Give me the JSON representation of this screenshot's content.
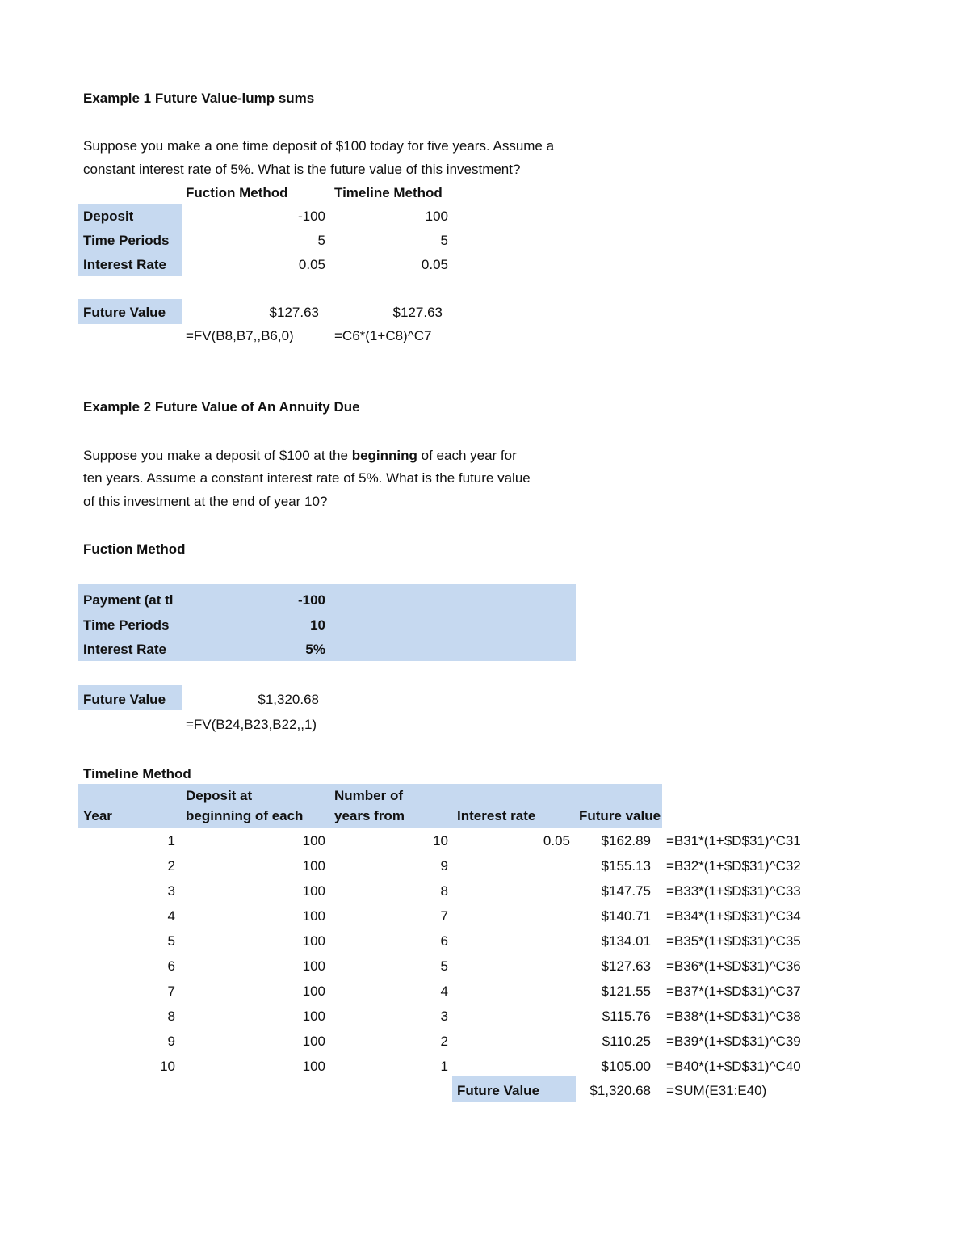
{
  "example1": {
    "title": "Example 1 Future Value-lump sums",
    "text": [
      "Suppose you make a one time deposit of $100 today for five years. Assume a",
      "constant interest rate of 5%. What is the future value of this investment?"
    ],
    "col_headers": [
      "Fuction Method",
      "Timeline Method"
    ],
    "rows": [
      {
        "label": "Deposit",
        "function": "-100",
        "timeline": "100"
      },
      {
        "label": "Time Periods",
        "function": "5",
        "timeline": "5"
      },
      {
        "label": "Interest Rate",
        "function": "0.05",
        "timeline": "0.05"
      }
    ],
    "fv_label": "Future Value",
    "fv_function": "$127.63",
    "fv_timeline": "$127.63",
    "formula_function": "=FV(B8,B7,,B6,0)",
    "formula_timeline": "=C6*(1+C8)^C7"
  },
  "example2": {
    "title": "Example 2 Future Value of An Annuity Due",
    "text_parts": [
      "Suppose you make a deposit of $100 at the ",
      "beginning",
      " of each year for"
    ],
    "text": [
      "ten years. Assume a constant interest rate of 5%. What is the future value",
      "of this investment at the end of year 10?"
    ],
    "function_heading": "Fuction Method",
    "rows": [
      {
        "label": "Payment (at tl",
        "value": "-100"
      },
      {
        "label": "Time Periods",
        "value": "10"
      },
      {
        "label": "Interest Rate",
        "value": "5%"
      }
    ],
    "fv_label": "Future Value",
    "fv_value": "$1,320.68",
    "fv_formula": "=FV(B24,B23,B22,,1)",
    "timeline_heading": "Timeline Method",
    "headers": {
      "year": "Year",
      "deposit": [
        "Deposit at",
        "beginning of each"
      ],
      "years_from": [
        "Number of",
        "years from"
      ],
      "rate": "Interest rate",
      "fv": "Future value"
    },
    "timeline_rows": [
      {
        "year": "1",
        "deposit": "100",
        "n": "10",
        "rate": "0.05",
        "fv": "$162.89",
        "formula": "=B31*(1+$D$31)^C31"
      },
      {
        "year": "2",
        "deposit": "100",
        "n": "9",
        "rate": "",
        "fv": "$155.13",
        "formula": "=B32*(1+$D$31)^C32"
      },
      {
        "year": "3",
        "deposit": "100",
        "n": "8",
        "rate": "",
        "fv": "$147.75",
        "formula": "=B33*(1+$D$31)^C33"
      },
      {
        "year": "4",
        "deposit": "100",
        "n": "7",
        "rate": "",
        "fv": "$140.71",
        "formula": "=B34*(1+$D$31)^C34"
      },
      {
        "year": "5",
        "deposit": "100",
        "n": "6",
        "rate": "",
        "fv": "$134.01",
        "formula": "=B35*(1+$D$31)^C35"
      },
      {
        "year": "6",
        "deposit": "100",
        "n": "5",
        "rate": "",
        "fv": "$127.63",
        "formula": "=B36*(1+$D$31)^C36"
      },
      {
        "year": "7",
        "deposit": "100",
        "n": "4",
        "rate": "",
        "fv": "$121.55",
        "formula": "=B37*(1+$D$31)^C37"
      },
      {
        "year": "8",
        "deposit": "100",
        "n": "3",
        "rate": "",
        "fv": "$115.76",
        "formula": "=B38*(1+$D$31)^C38"
      },
      {
        "year": "9",
        "deposit": "100",
        "n": "2",
        "rate": "",
        "fv": "$110.25",
        "formula": "=B39*(1+$D$31)^C39"
      },
      {
        "year": "10",
        "deposit": "100",
        "n": "1",
        "rate": "",
        "fv": "$105.00",
        "formula": "=B40*(1+$D$31)^C40"
      }
    ],
    "total_label": "Future Value",
    "total_value": "$1,320.68",
    "total_formula": "=SUM(E31:E40)"
  },
  "colors": {
    "fill": "#c6d9f0"
  }
}
